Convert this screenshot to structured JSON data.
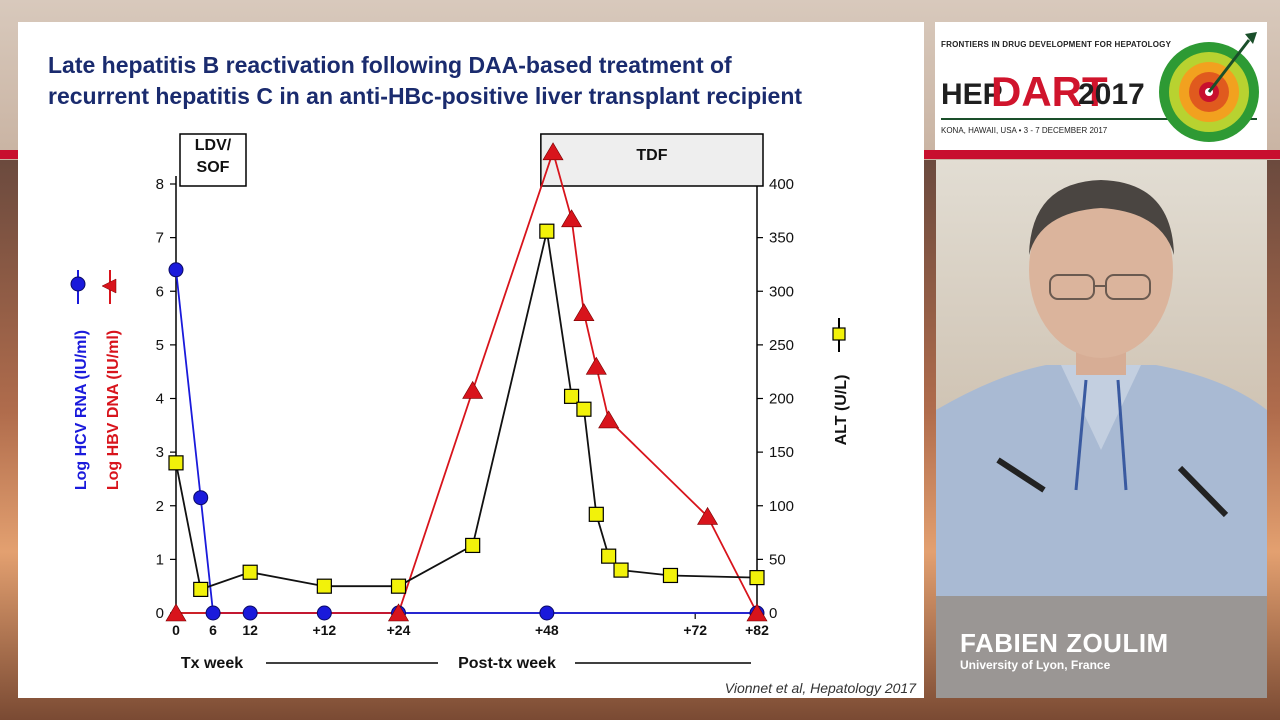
{
  "slide": {
    "title_lines": [
      "Late hepatitis B reactivation following DAA-based treatment of",
      "recurrent hepatitis C in an anti-HBc-positive liver transplant recipient"
    ],
    "citation": "Vionnet et al, Hepatology 2017"
  },
  "chart_data": {
    "type": "line",
    "x_tick_labels": [
      {
        "x": 0,
        "label": "0"
      },
      {
        "x": 6,
        "label": "6"
      },
      {
        "x": 12,
        "label": "12"
      },
      {
        "x": 24,
        "label": "+12"
      },
      {
        "x": 36,
        "label": "+24"
      },
      {
        "x": 60,
        "label": "+48"
      },
      {
        "x": 84,
        "label": "+72"
      },
      {
        "x": 94,
        "label": "+82"
      }
    ],
    "xlim": [
      0,
      94
    ],
    "left_axis": {
      "ylim": [
        0,
        8
      ],
      "ticks": [
        0,
        1,
        2,
        3,
        4,
        5,
        6,
        7,
        8
      ],
      "label_hcv": "Log HCV RNA (IU/ml)",
      "label_hbv": "Log HBV DNA (IU/ml)"
    },
    "right_axis": {
      "ylim": [
        0,
        400
      ],
      "ticks": [
        0,
        50,
        100,
        150,
        200,
        250,
        300,
        350,
        400
      ],
      "label": "ALT (U/L)"
    },
    "x_axis_labels": {
      "tx": "Tx week",
      "post_tx": "Post-tx week"
    },
    "treatments": [
      {
        "label_lines": [
          "LDV/",
          "SOF"
        ],
        "x_start": 0,
        "x_end": 12
      },
      {
        "label_lines": [
          "TDF"
        ],
        "x_start": 60,
        "x_end": 94
      }
    ],
    "series": [
      {
        "key": "hcv",
        "axis": "left",
        "marker": "circle",
        "color": "#1a1adb",
        "points": [
          [
            0,
            6.4
          ],
          [
            4,
            2.15
          ],
          [
            6,
            0
          ],
          [
            12,
            0
          ],
          [
            24,
            0
          ],
          [
            36,
            0
          ],
          [
            60,
            0
          ],
          [
            94,
            0
          ]
        ]
      },
      {
        "key": "hbv",
        "axis": "left",
        "marker": "triangle",
        "color": "#d8141c",
        "points": [
          [
            0,
            0
          ],
          [
            36,
            0
          ],
          [
            48,
            4.15
          ],
          [
            61,
            8.6
          ],
          [
            64,
            7.35
          ],
          [
            66,
            5.6
          ],
          [
            68,
            4.6
          ],
          [
            70,
            3.6
          ],
          [
            86,
            1.8
          ],
          [
            94,
            0
          ]
        ]
      },
      {
        "key": "alt",
        "axis": "right",
        "marker": "square",
        "color": "#f2f20a",
        "points": [
          [
            0,
            140
          ],
          [
            4,
            22
          ],
          [
            12,
            38
          ],
          [
            24,
            25
          ],
          [
            36,
            25
          ],
          [
            48,
            63
          ],
          [
            60,
            356
          ],
          [
            64,
            202
          ],
          [
            66,
            190
          ],
          [
            68,
            92
          ],
          [
            70,
            53
          ],
          [
            72,
            40
          ],
          [
            80,
            35
          ],
          [
            94,
            33
          ]
        ]
      }
    ]
  },
  "logo": {
    "tagline": "FRONTIERS IN DRUG DEVELOPMENT FOR HEPATOLOGY",
    "hep": "HEP",
    "dart": "DART",
    "year": "2017",
    "location": "KONA, HAWAII, USA • 3 - 7 DECEMBER 2017"
  },
  "speaker": {
    "name": "FABIEN ZOULIM",
    "affiliation": "University of Lyon, France"
  }
}
